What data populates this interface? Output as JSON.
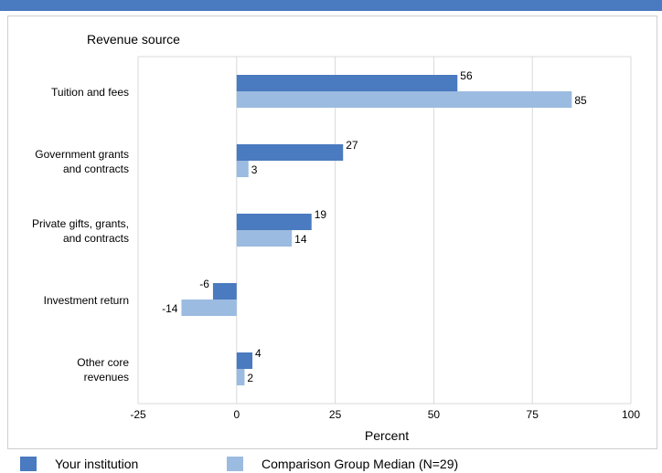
{
  "colors": {
    "accent_bar": "#4a7abf",
    "series_1": "#4a7abf",
    "series_2": "#9bbbe0",
    "grid": "#d9d9d9"
  },
  "chart_data": {
    "type": "bar",
    "orientation": "horizontal",
    "title": "",
    "ylabel": "Revenue source",
    "xlabel": "Percent",
    "categories": [
      [
        "Tuition and fees"
      ],
      [
        "Government grants",
        "and contracts"
      ],
      [
        "Private gifts, grants,",
        "and contracts"
      ],
      [
        "Investment return"
      ],
      [
        "Other core",
        "revenues"
      ]
    ],
    "series": [
      {
        "name": "Your institution",
        "values": [
          56,
          27,
          19,
          -6,
          4
        ]
      },
      {
        "name": "Comparison Group Median (N=29)",
        "values": [
          85,
          3,
          14,
          -14,
          2
        ]
      }
    ],
    "xlim": [
      -25,
      100
    ],
    "xticks": [
      -25,
      0,
      25,
      50,
      75,
      100
    ],
    "grid": true,
    "legend_position": "bottom"
  }
}
